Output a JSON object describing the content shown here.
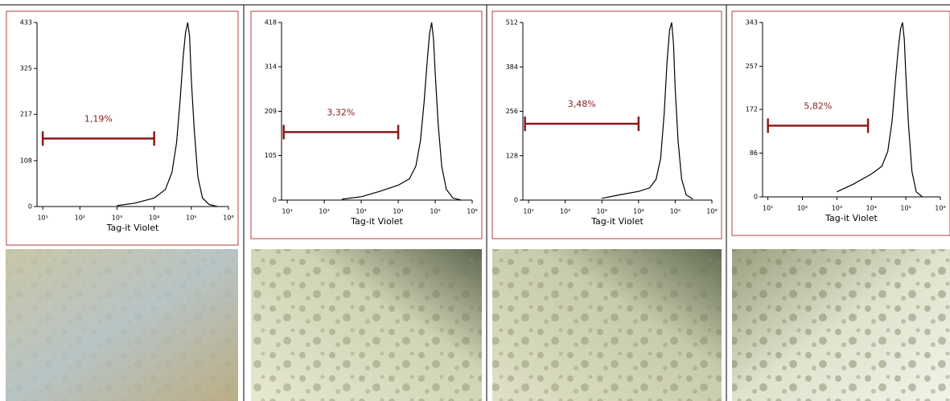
{
  "chart_data": [
    {
      "type": "line",
      "xlog": true,
      "x_label": "Tag-it Violet",
      "color": "#000000",
      "xlim": [
        7,
        1000000
      ],
      "xticks": [
        {
          "value": 10,
          "label": "10¹"
        },
        {
          "value": 100,
          "label": "10²"
        },
        {
          "value": 1000,
          "label": "10³"
        },
        {
          "value": 10000,
          "label": "10⁴"
        },
        {
          "value": 100000,
          "label": "10⁵"
        },
        {
          "value": 1000000,
          "label": "10⁶"
        }
      ],
      "ylim": [
        0,
        433
      ],
      "yticks": [
        0,
        108,
        217,
        325,
        433
      ],
      "x": [
        1000,
        3000,
        10000,
        20000,
        30000,
        40000,
        50000,
        60000,
        70000,
        80000,
        90000,
        100000,
        120000,
        150000,
        200000,
        300000,
        500000
      ],
      "values": [
        2,
        8,
        20,
        40,
        80,
        150,
        250,
        350,
        410,
        433,
        400,
        300,
        180,
        70,
        20,
        5,
        0
      ],
      "gate": {
        "label": "1,19%",
        "x": [
          10,
          10000
        ],
        "y": 160,
        "color": "#8b1a1a"
      }
    },
    {
      "type": "line",
      "xlog": true,
      "x_label": "Tag-it Violet",
      "color": "#000000",
      "xlim": [
        7,
        1000000
      ],
      "xticks": [
        {
          "value": 10,
          "label": "10¹"
        },
        {
          "value": 100,
          "label": "10²"
        },
        {
          "value": 1000,
          "label": "10³"
        },
        {
          "value": 10000,
          "label": "10⁴"
        },
        {
          "value": 100000,
          "label": "10⁵"
        },
        {
          "value": 1000000,
          "label": "10⁶"
        }
      ],
      "ylim": [
        0,
        418
      ],
      "yticks": [
        0,
        105,
        209,
        314,
        418
      ],
      "x": [
        300,
        1000,
        3000,
        10000,
        20000,
        30000,
        40000,
        50000,
        60000,
        70000,
        80000,
        90000,
        100000,
        120000,
        150000,
        200000,
        300000,
        500000
      ],
      "values": [
        2,
        8,
        20,
        35,
        50,
        80,
        140,
        230,
        320,
        390,
        418,
        380,
        300,
        180,
        80,
        25,
        5,
        0
      ],
      "gate": {
        "label": "3,32%",
        "x": [
          8,
          10000
        ],
        "y": 160,
        "color": "#8b1a1a"
      }
    },
    {
      "type": "line",
      "xlog": true,
      "x_label": "Tag-it Violet",
      "color": "#000000",
      "xlim": [
        7,
        1000000
      ],
      "xticks": [
        {
          "value": 10,
          "label": "10¹"
        },
        {
          "value": 100,
          "label": "10²"
        },
        {
          "value": 1000,
          "label": "10³"
        },
        {
          "value": 10000,
          "label": "10⁴"
        },
        {
          "value": 100000,
          "label": "10⁵"
        },
        {
          "value": 1000000,
          "label": "10⁶"
        }
      ],
      "ylim": [
        0,
        512
      ],
      "yticks": [
        0,
        128,
        256,
        384,
        512
      ],
      "x": [
        1000,
        3000,
        10000,
        20000,
        30000,
        40000,
        50000,
        60000,
        70000,
        80000,
        90000,
        100000,
        120000,
        150000,
        200000,
        300000
      ],
      "values": [
        5,
        15,
        25,
        35,
        60,
        120,
        250,
        400,
        490,
        512,
        450,
        320,
        170,
        60,
        15,
        3
      ],
      "gate": {
        "label": "3,48%",
        "x": [
          8,
          10000
        ],
        "y": 220,
        "color": "#8b1a1a"
      }
    },
    {
      "type": "line",
      "xlog": true,
      "x_label": "Tag-it Violet",
      "color": "#000000",
      "xlim": [
        7,
        1000000
      ],
      "xticks": [
        {
          "value": 10,
          "label": "10¹"
        },
        {
          "value": 100,
          "label": "10²"
        },
        {
          "value": 1000,
          "label": "10³"
        },
        {
          "value": 10000,
          "label": "10⁴"
        },
        {
          "value": 100000,
          "label": "10⁵"
        },
        {
          "value": 1000000,
          "label": "10⁶"
        }
      ],
      "ylim": [
        0,
        343
      ],
      "yticks": [
        0,
        86,
        172,
        257,
        343
      ],
      "x": [
        1000,
        3000,
        10000,
        20000,
        30000,
        40000,
        50000,
        60000,
        70000,
        80000,
        90000,
        100000,
        120000,
        150000,
        200000,
        300000
      ],
      "values": [
        10,
        25,
        45,
        60,
        90,
        150,
        230,
        290,
        330,
        343,
        310,
        240,
        140,
        50,
        10,
        0
      ],
      "gate": {
        "label": "5,82%",
        "x": [
          10,
          8000
        ],
        "y": 140,
        "color": "#8b1a1a"
      }
    }
  ]
}
